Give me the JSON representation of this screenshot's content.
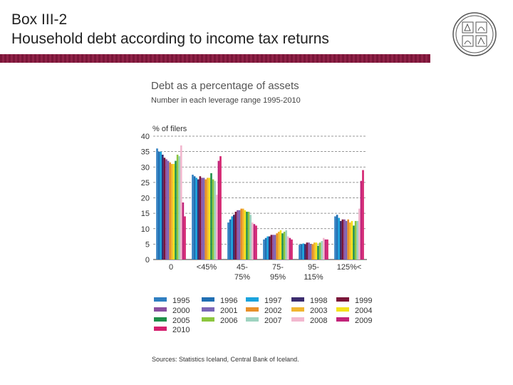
{
  "slide": {
    "title_line1": "Box III-2",
    "title_line2": "Household debt according to income tax returns",
    "logo_icon": "central-bank-of-iceland-seal-icon"
  },
  "chart_data": {
    "type": "bar",
    "title": "Debt as a percentage of assets",
    "subtitle": "Number in each leverage range 1995-2010",
    "ylabel": "% of filers",
    "xlabel": "",
    "ylim": [
      0,
      40
    ],
    "yticks": [
      0,
      5,
      10,
      15,
      20,
      25,
      30,
      35,
      40
    ],
    "grid": "horizontal-dashed",
    "legend_position": "bottom",
    "categories": [
      [
        "0"
      ],
      [
        "<45%"
      ],
      [
        "45-",
        "75%"
      ],
      [
        "75-",
        "95%"
      ],
      [
        "95-",
        "115%"
      ],
      [
        "125%<"
      ]
    ],
    "series": [
      {
        "name": "1995",
        "color": "#2f7fc1",
        "values": [
          36.0,
          27.5,
          12.0,
          6.5,
          4.8,
          14.0
        ]
      },
      {
        "name": "1996",
        "color": "#1f6fb3",
        "values": [
          35.0,
          27.0,
          13.0,
          7.0,
          5.0,
          14.5
        ]
      },
      {
        "name": "1997",
        "color": "#1aa3dd",
        "values": [
          35.0,
          26.5,
          14.0,
          7.5,
          5.2,
          13.5
        ]
      },
      {
        "name": "1998",
        "color": "#3b2c6e",
        "values": [
          34.0,
          26.0,
          14.5,
          7.5,
          5.0,
          12.5
        ]
      },
      {
        "name": "1999",
        "color": "#7a1538",
        "values": [
          33.0,
          27.0,
          15.5,
          8.0,
          5.5,
          13.0
        ]
      },
      {
        "name": "2000",
        "color": "#8a4fa0",
        "values": [
          32.5,
          26.5,
          16.0,
          8.0,
          5.5,
          13.0
        ]
      },
      {
        "name": "2001",
        "color": "#7a66b8",
        "values": [
          32.0,
          26.5,
          16.0,
          8.0,
          5.0,
          12.5
        ]
      },
      {
        "name": "2002",
        "color": "#e8902a",
        "values": [
          31.5,
          26.0,
          16.5,
          8.5,
          5.0,
          13.0
        ]
      },
      {
        "name": "2003",
        "color": "#f0b530",
        "values": [
          31.0,
          26.5,
          16.5,
          9.0,
          5.5,
          12.0
        ]
      },
      {
        "name": "2004",
        "color": "#f4e21a",
        "values": [
          31.0,
          26.5,
          16.0,
          9.5,
          5.5,
          12.5
        ]
      },
      {
        "name": "2005",
        "color": "#1f8f4a",
        "values": [
          32.0,
          28.0,
          15.5,
          8.5,
          4.5,
          11.0
        ]
      },
      {
        "name": "2006",
        "color": "#8cc63f",
        "values": [
          34.0,
          26.0,
          15.5,
          9.0,
          5.5,
          12.5
        ]
      },
      {
        "name": "2007",
        "color": "#9fd3c0",
        "values": [
          33.5,
          25.5,
          14.5,
          9.5,
          6.0,
          12.5
        ]
      },
      {
        "name": "2008",
        "color": "#f2b8cf",
        "values": [
          37.0,
          21.0,
          12.0,
          7.5,
          7.0,
          16.5
        ]
      },
      {
        "name": "2009",
        "color": "#c2247a",
        "values": [
          18.5,
          32.0,
          11.5,
          7.0,
          6.5,
          25.5
        ]
      },
      {
        "name": "2010",
        "color": "#d4206e",
        "values": [
          14.0,
          33.5,
          11.0,
          6.5,
          6.5,
          29.0
        ]
      }
    ],
    "source": "Sources: Statistics Iceland, Central Bank of Iceland."
  }
}
